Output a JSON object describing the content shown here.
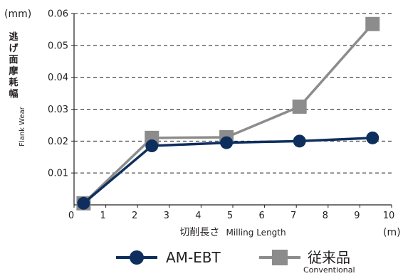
{
  "chart_data": {
    "type": "line",
    "units": {
      "y": "(mm)",
      "x": "(m)"
    },
    "ylabel": {
      "ja": "逃げ面摩耗幅",
      "en": "Flank Wear"
    },
    "xlabel": {
      "ja": "切削長さ",
      "en": "Milling Length"
    },
    "xlim": [
      0,
      10
    ],
    "ylim": [
      0,
      0.06
    ],
    "x_ticks": [
      "0",
      "1",
      "2",
      "3",
      "4",
      "5",
      "6",
      "7",
      "8",
      "9",
      "10"
    ],
    "y_ticks": [
      "0.01",
      "0.02",
      "0.03",
      "0.04",
      "0.05",
      "0.06"
    ],
    "grid": "horizontal dashed",
    "legend_position": "bottom",
    "series": [
      {
        "name": "AM-EBT",
        "subname": "",
        "color": "#0e2f5e",
        "marker": "circle",
        "x": [
          0.3,
          2.45,
          4.8,
          7.1,
          9.4
        ],
        "y": [
          0.0005,
          0.0185,
          0.0195,
          0.02,
          0.021
        ]
      },
      {
        "name": "従来品",
        "subname": "Conventional",
        "color": "#8c8c8c",
        "marker": "square",
        "x": [
          0.3,
          2.45,
          4.8,
          7.1,
          9.4
        ],
        "y": [
          0.0005,
          0.021,
          0.0212,
          0.0308,
          0.0567
        ]
      }
    ]
  }
}
